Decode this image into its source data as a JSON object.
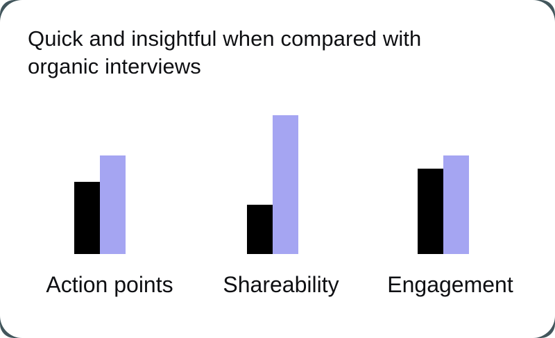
{
  "colors": {
    "backdrop": "#42565c",
    "card_background": "#ffffff",
    "text": "#0e0f12",
    "bar_black": "#000000",
    "bar_purple": "#a5a5f2"
  },
  "chart_data": {
    "type": "bar",
    "title": "Quick and insightful when compared with organic interviews",
    "categories": [
      "Action points",
      "Shareability",
      "Engagement"
    ],
    "series": [
      {
        "name": "black",
        "color": "#000000",
        "values": [
          52,
          35.5,
          61.5
        ]
      },
      {
        "name": "purple",
        "color": "#a5a5f2",
        "values": [
          71,
          100,
          71
        ]
      }
    ],
    "ylim": [
      0,
      100
    ],
    "value_units": "relative (no axis shown)",
    "xlabel": "",
    "ylabel": "",
    "grid": false,
    "axes_visible": false,
    "legend_position": "none"
  }
}
